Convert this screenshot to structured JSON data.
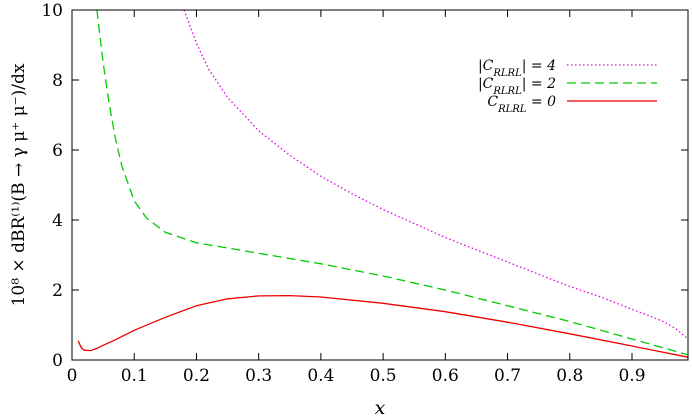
{
  "chart_data": {
    "type": "line",
    "xlabel": "x",
    "ylabel": "10⁸ × dBR⁽¹⁾(B → γ μ⁺ μ⁻)/dx",
    "xlim": [
      0,
      0.99
    ],
    "ylim": [
      0,
      10
    ],
    "xticks": [
      0,
      0.1,
      0.2,
      0.3,
      0.4,
      0.5,
      0.6,
      0.7,
      0.8,
      0.9
    ],
    "xtick_labels": [
      "0",
      "0.1",
      "0.2",
      "0.3",
      "0.4",
      "0.5",
      "0.6",
      "0.7",
      "0.8",
      "0.9"
    ],
    "yticks": [
      0,
      2,
      4,
      6,
      8,
      10
    ],
    "ytick_labels": [
      "0",
      "2",
      "4",
      "6",
      "8",
      "10"
    ],
    "grid": false,
    "legend_position": "top-right",
    "series": [
      {
        "name": "|C_RLRL| = 4",
        "color": "#e000e0",
        "dash": "dotted",
        "x": [
          0.18,
          0.2,
          0.22,
          0.25,
          0.3,
          0.35,
          0.4,
          0.45,
          0.5,
          0.55,
          0.6,
          0.65,
          0.7,
          0.75,
          0.8,
          0.85,
          0.9,
          0.93,
          0.95,
          0.97,
          0.98,
          0.99
        ],
        "y": [
          10.0,
          9.05,
          8.3,
          7.5,
          6.55,
          5.85,
          5.25,
          4.75,
          4.3,
          3.9,
          3.5,
          3.15,
          2.8,
          2.45,
          2.1,
          1.8,
          1.45,
          1.25,
          1.1,
          0.9,
          0.75,
          0.6
        ]
      },
      {
        "name": "|C_RLRL| = 2",
        "color": "#00cc00",
        "dash": "dashed",
        "x": [
          0.04,
          0.05,
          0.06,
          0.07,
          0.08,
          0.1,
          0.12,
          0.15,
          0.2,
          0.25,
          0.3,
          0.35,
          0.4,
          0.5,
          0.6,
          0.7,
          0.8,
          0.9,
          0.95,
          0.99
        ],
        "y": [
          10.0,
          8.5,
          7.3,
          6.3,
          5.55,
          4.55,
          4.05,
          3.65,
          3.35,
          3.2,
          3.05,
          2.9,
          2.75,
          2.4,
          2.0,
          1.55,
          1.1,
          0.6,
          0.35,
          0.15
        ]
      },
      {
        "name": "C_RLRL = 0",
        "color": "#ee0000",
        "dash": "solid",
        "x": [
          0.01,
          0.015,
          0.02,
          0.03,
          0.04,
          0.05,
          0.07,
          0.1,
          0.15,
          0.2,
          0.25,
          0.3,
          0.35,
          0.4,
          0.5,
          0.6,
          0.7,
          0.8,
          0.9,
          0.95,
          0.99
        ],
        "y": [
          0.55,
          0.35,
          0.28,
          0.27,
          0.33,
          0.42,
          0.58,
          0.85,
          1.22,
          1.55,
          1.75,
          1.83,
          1.84,
          1.8,
          1.62,
          1.38,
          1.08,
          0.75,
          0.4,
          0.22,
          0.08
        ]
      }
    ]
  }
}
